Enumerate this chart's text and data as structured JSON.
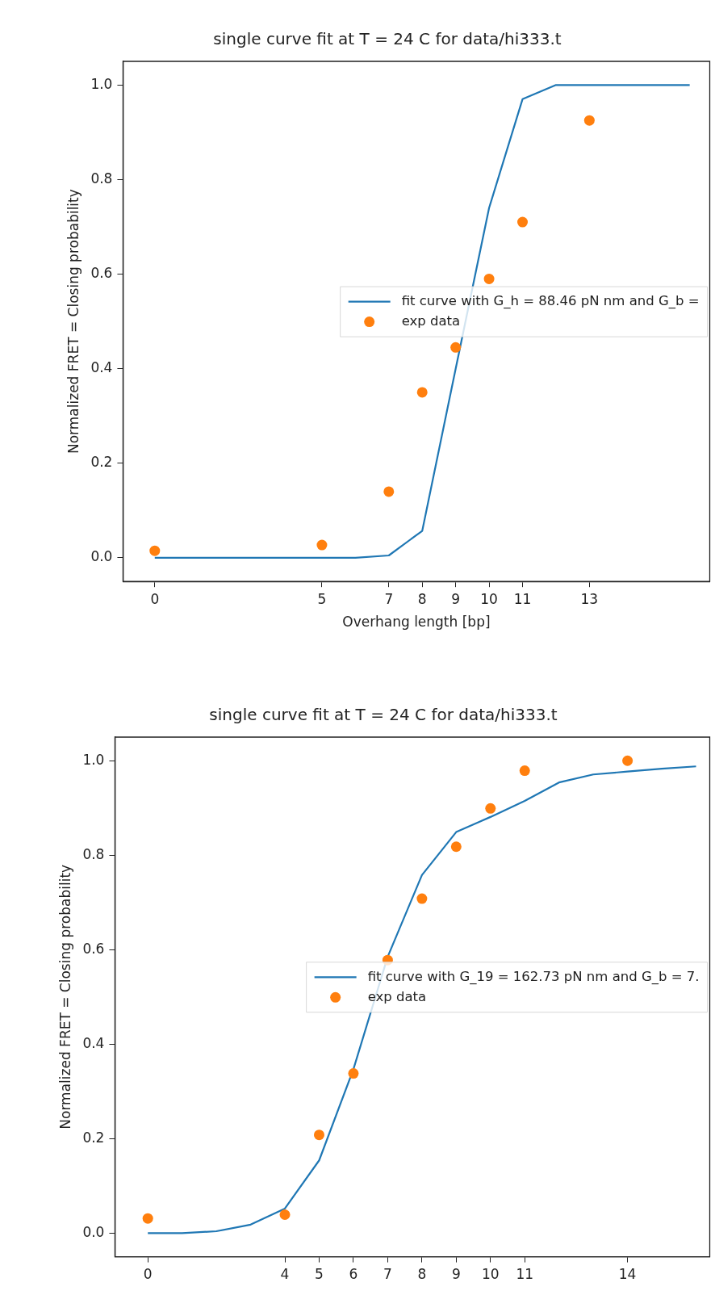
{
  "chart_data": [
    {
      "type": "scatter",
      "title": "single curve fit at T = 24 C for data/hi333.t",
      "xlabel": "Overhang length [bp]",
      "ylabel": "Normalized FRET = Closing probability",
      "xlim": [
        -0.95,
        16.6
      ],
      "ylim": [
        -0.05,
        1.05
      ],
      "xticks": [
        0,
        5,
        7,
        8,
        9,
        10,
        11,
        13
      ],
      "yticks": [
        {
          "value": 0,
          "label": "0.0"
        },
        {
          "value": 0.2,
          "label": "0.2"
        },
        {
          "value": 0.4,
          "label": "0.4"
        },
        {
          "value": 0.6,
          "label": "0.6"
        },
        {
          "value": 0.8,
          "label": "0.8"
        },
        {
          "value": 1,
          "label": "1.0"
        }
      ],
      "grid": false,
      "legend": "center right",
      "series": [
        {
          "name": "fit curve with G_h = 88.46 pN nm and G_b =",
          "type": "line",
          "marker": "none",
          "color": "#1f77b4",
          "x": [
            0,
            1,
            2,
            3,
            4,
            5,
            6,
            7,
            8,
            9,
            10,
            11,
            12,
            13,
            14,
            15,
            16
          ],
          "values": [
            0,
            0,
            0,
            0,
            0,
            0,
            0,
            0.005,
            0.057,
            0.4,
            0.74,
            0.97,
            1,
            1,
            1,
            1,
            1
          ]
        },
        {
          "name": "exp data",
          "type": "scatter",
          "marker": "circle",
          "color": "#ff7f0e",
          "x": [
            0,
            5,
            7,
            8,
            9,
            10,
            11,
            13
          ],
          "values": [
            0.015,
            0.027,
            0.14,
            0.35,
            0.445,
            0.59,
            0.71,
            0.925
          ]
        }
      ]
    },
    {
      "type": "scatter",
      "title": "single curve fit at T = 24 C for data/hi333.t",
      "ylabel": "Normalized FRET = Closing probability",
      "xlim": [
        -0.96,
        16.4
      ],
      "ylim": [
        -0.05,
        1.05
      ],
      "xticks": [
        0,
        4,
        5,
        6,
        7,
        8,
        9,
        10,
        11,
        14
      ],
      "yticks": [
        {
          "value": 0,
          "label": "0.0"
        },
        {
          "value": 0.2,
          "label": "0.2"
        },
        {
          "value": 0.4,
          "label": "0.4"
        },
        {
          "value": 0.6,
          "label": "0.6"
        },
        {
          "value": 0.8,
          "label": "0.8"
        },
        {
          "value": 1,
          "label": "1.0"
        }
      ],
      "grid": false,
      "legend": "center right",
      "series": [
        {
          "name": "fit curve with G_19 = 162.73 pN nm and G_b = 7.",
          "type": "line",
          "marker": "none",
          "color": "#1f77b4",
          "x": [
            0,
            1,
            2,
            3,
            4,
            5,
            6,
            7,
            8,
            9,
            10,
            11,
            12,
            13,
            14,
            15,
            16
          ],
          "values": [
            0,
            0,
            0.004,
            0.018,
            0.052,
            0.154,
            0.347,
            0.585,
            0.758,
            0.849,
            0.881,
            0.915,
            0.954,
            0.971,
            0.977,
            0.983,
            0.988
          ]
        },
        {
          "name": "exp data",
          "type": "scatter",
          "marker": "circle",
          "color": "#ff7f0e",
          "x": [
            0,
            4,
            5,
            6,
            7,
            8,
            9,
            10,
            11,
            14
          ],
          "values": [
            0.031,
            0.039,
            0.208,
            0.338,
            0.578,
            0.708,
            0.818,
            0.899,
            0.979,
            1.0
          ]
        }
      ]
    }
  ]
}
